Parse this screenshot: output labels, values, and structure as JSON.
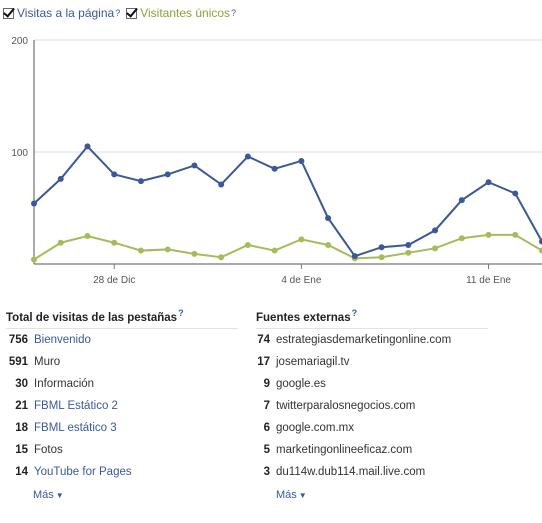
{
  "legend": {
    "visits_label": "Visitas a la página",
    "unique_label": "Visitantes únicos",
    "help": "?"
  },
  "chart_data": {
    "type": "line",
    "x_tick_labels": [
      "28 de Dic",
      "4 de Ene",
      "11 de Ene"
    ],
    "y_tick_labels": [
      "200",
      "100"
    ],
    "ylim": [
      0,
      200
    ],
    "grid": true,
    "series": [
      {
        "name": "Visitas a la página",
        "color": "#3b5998",
        "values": [
          54,
          76,
          105,
          80,
          74,
          80,
          88,
          71,
          96,
          85,
          92,
          41,
          7,
          15,
          17,
          30,
          57,
          73,
          63,
          20
        ]
      },
      {
        "name": "Visitantes únicos",
        "color": "#a6bb5c",
        "values": [
          4,
          19,
          25,
          19,
          12,
          13,
          9,
          6,
          17,
          12,
          22,
          17,
          5,
          6,
          10,
          14,
          23,
          26,
          26,
          12
        ]
      }
    ]
  },
  "tabs_section": {
    "title": "Total de visitas de las pestañas",
    "help": "?",
    "rows": [
      {
        "count": "756",
        "label": "Bienvenido",
        "link": true
      },
      {
        "count": "591",
        "label": "Muro",
        "link": false
      },
      {
        "count": "30",
        "label": "Información",
        "link": false
      },
      {
        "count": "21",
        "label": "FBML Estático 2",
        "link": true
      },
      {
        "count": "18",
        "label": "FBML estático 3",
        "link": true
      },
      {
        "count": "15",
        "label": "Fotos",
        "link": false
      },
      {
        "count": "14",
        "label": "YouTube for Pages",
        "link": true
      }
    ],
    "more": "Más"
  },
  "sources_section": {
    "title": "Fuentes externas",
    "help": "?",
    "rows": [
      {
        "count": "74",
        "label": "estrategiasdemarketingonline.com"
      },
      {
        "count": "17",
        "label": "josemariagil.tv"
      },
      {
        "count": "9",
        "label": "google.es"
      },
      {
        "count": "7",
        "label": "twitterparalosnegocios.com"
      },
      {
        "count": "6",
        "label": "google.com.mx"
      },
      {
        "count": "5",
        "label": "marketingonlineeficaz.com"
      },
      {
        "count": "3",
        "label": "du114w.dub114.mail.live.com"
      }
    ],
    "more": "Más"
  }
}
